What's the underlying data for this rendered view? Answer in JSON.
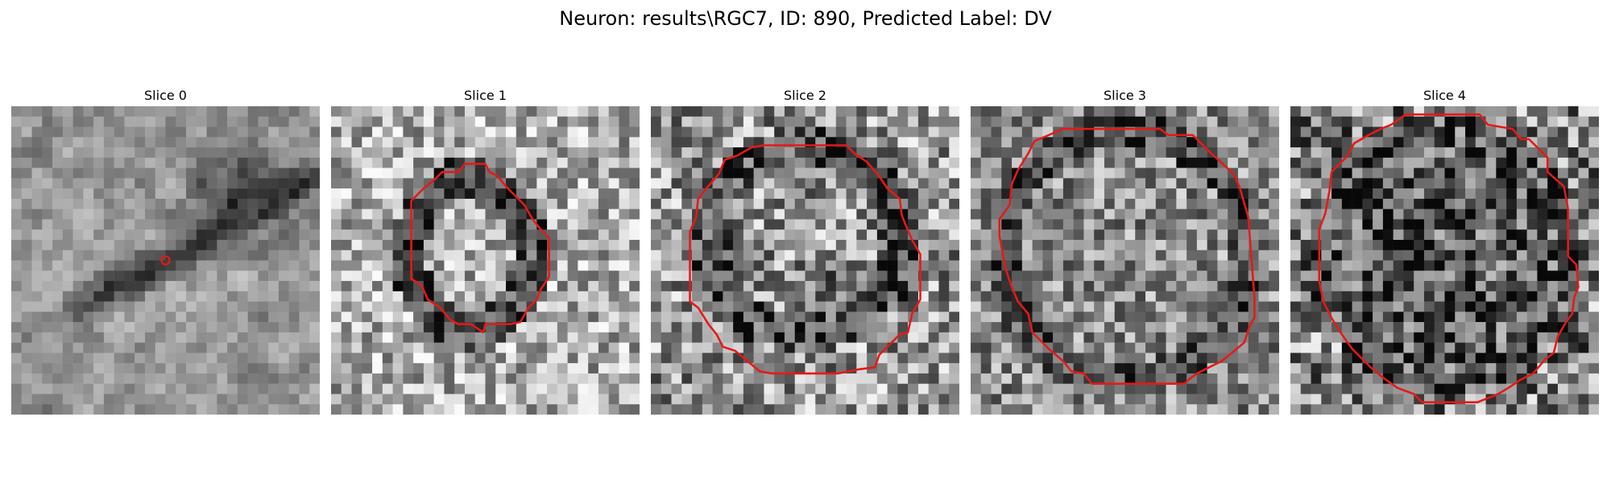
{
  "figure": {
    "title": "Neuron: results\\RGC7, ID: 890, Predicted Label: DV",
    "contour_color": "#e61919"
  },
  "slices": [
    {
      "title": "Slice 0",
      "contour": "point"
    },
    {
      "title": "Slice 1",
      "contour": "polygon"
    },
    {
      "title": "Slice 2",
      "contour": "polygon"
    },
    {
      "title": "Slice 3",
      "contour": "polygon"
    },
    {
      "title": "Slice 4",
      "contour": "polygon"
    }
  ]
}
